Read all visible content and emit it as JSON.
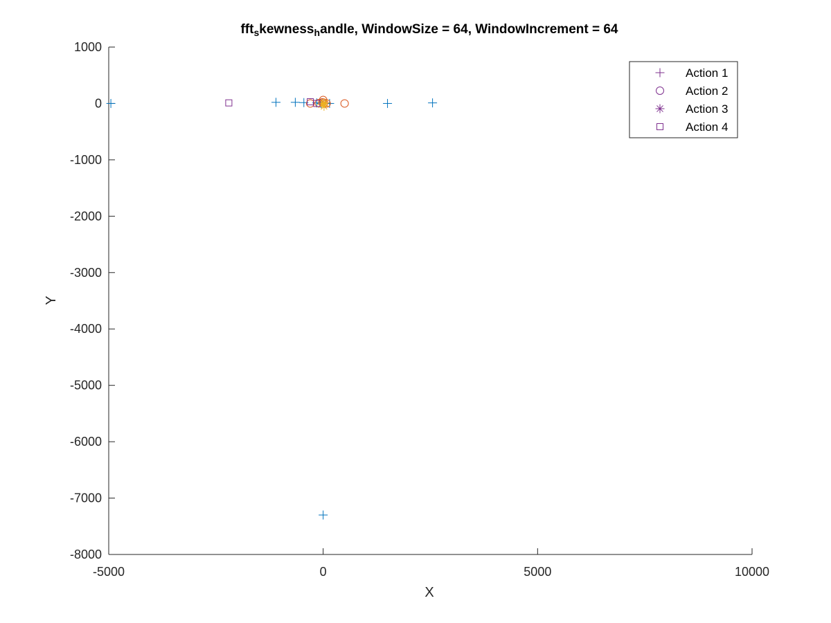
{
  "chart_data": {
    "type": "scatter",
    "title_parts": [
      {
        "text": "fft",
        "sub": false
      },
      {
        "text": "s",
        "sub": true
      },
      {
        "text": "kewness",
        "sub": false
      },
      {
        "text": "h",
        "sub": true
      },
      {
        "text": "andle, WindowSize = 64, WindowIncrement = 64",
        "sub": false
      }
    ],
    "xlabel": "X",
    "ylabel": "Y",
    "xlim": [
      -5000,
      10000
    ],
    "ylim": [
      -8000,
      1000
    ],
    "xticks": [
      -5000,
      0,
      5000,
      10000
    ],
    "yticks": [
      1000,
      0,
      -1000,
      -2000,
      -3000,
      -4000,
      -5000,
      -6000,
      -7000,
      -8000
    ],
    "grid": false,
    "legend_position": "top-right",
    "legend_entries": [
      {
        "label": "Action 1",
        "marker": "plus"
      },
      {
        "label": "Action 2",
        "marker": "circle"
      },
      {
        "label": "Action 3",
        "marker": "asterisk"
      },
      {
        "label": "Action 4",
        "marker": "square"
      }
    ],
    "legend_color": "#7e2f8e",
    "series": [
      {
        "marker": "plus",
        "color": "#0072bd",
        "points": [
          [
            -4950,
            0
          ],
          [
            -1100,
            20
          ],
          [
            -650,
            20
          ],
          [
            -450,
            15
          ],
          [
            -150,
            10
          ],
          [
            -50,
            0
          ],
          [
            0,
            5
          ],
          [
            50,
            0
          ],
          [
            150,
            0
          ],
          [
            1500,
            0
          ],
          [
            2550,
            10
          ],
          [
            0,
            -7300
          ]
        ]
      },
      {
        "marker": "circle",
        "color": "#d95319",
        "points": [
          [
            -300,
            0
          ],
          [
            -100,
            5
          ],
          [
            -20,
            20
          ],
          [
            0,
            60
          ],
          [
            20,
            10
          ],
          [
            80,
            0
          ],
          [
            500,
            0
          ]
        ]
      },
      {
        "marker": "asterisk",
        "color": "#edb120",
        "points": [
          [
            -30,
            -20
          ],
          [
            0,
            0
          ],
          [
            20,
            -50
          ],
          [
            40,
            10
          ]
        ]
      },
      {
        "marker": "square",
        "color": "#7e2f8e",
        "points": [
          [
            -2200,
            10
          ],
          [
            -300,
            30
          ],
          [
            -150,
            0
          ]
        ]
      }
    ]
  }
}
